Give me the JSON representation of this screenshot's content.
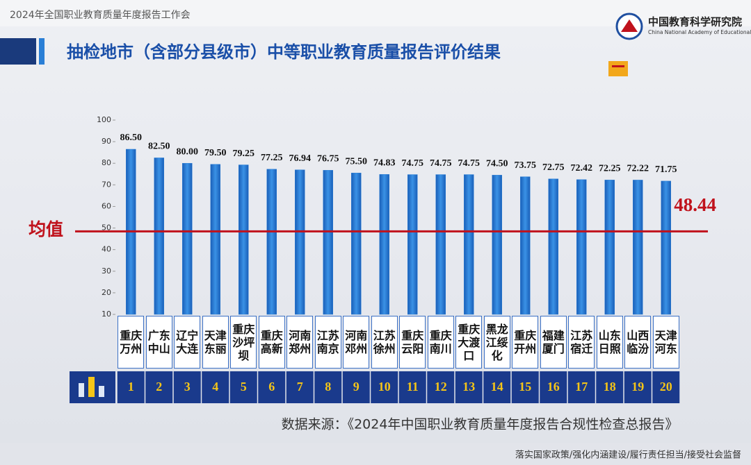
{
  "header": {
    "event": "2024年全国职业教育质量年度报告工作会",
    "org_cn": "中国教育科学研究院",
    "org_en": "China National Academy of Educational Sciences"
  },
  "chart_data": {
    "type": "bar",
    "title": "抽检地市（含部分县级市）中等职业教育质量报告评价结果",
    "categories": [
      "重庆万州",
      "广东中山",
      "辽宁大连",
      "天津东丽",
      "重庆沙坪坝",
      "重庆高新",
      "河南郑州",
      "江苏南京",
      "河南邓州",
      "江苏徐州",
      "重庆云阳",
      "重庆南川",
      "重庆大渡口",
      "黑龙江绥化",
      "重庆开州",
      "福建厦门",
      "江苏宿迁",
      "山东日照",
      "山西临汾",
      "天津河东"
    ],
    "ranks": [
      1,
      2,
      3,
      4,
      5,
      6,
      7,
      8,
      9,
      10,
      11,
      12,
      13,
      14,
      15,
      16,
      17,
      18,
      19,
      20
    ],
    "values": [
      86.5,
      82.5,
      80,
      79.5,
      79.25,
      77.25,
      76.94,
      76.75,
      75.5,
      74.83,
      74.75,
      74.75,
      74.75,
      74.5,
      73.75,
      72.75,
      72.42,
      72.25,
      72.22,
      71.75
    ],
    "value_labels": [
      "86.50",
      "82.50",
      "80.00",
      "79.50",
      "79.25",
      "77.25",
      "76.94",
      "76.75",
      "75.50",
      "74.83",
      "74.75",
      "74.75",
      "74.75",
      "74.50",
      "73.75",
      "72.75",
      "72.42",
      "72.25",
      "72.22",
      "71.75"
    ],
    "color": "#2a7fd6",
    "ylim": [
      10,
      100
    ],
    "yticks": [
      10,
      20,
      30,
      40,
      50,
      60,
      70,
      80,
      90,
      100
    ],
    "mean": {
      "label": "均值",
      "value": 48.44,
      "color": "#c0121c"
    },
    "source": "数据来源：《2024年中国职业教育质量年度报告合规性检查总报告》"
  },
  "footer": "落实国家政策/强化内涵建设/履行责任担当/接受社会监督"
}
